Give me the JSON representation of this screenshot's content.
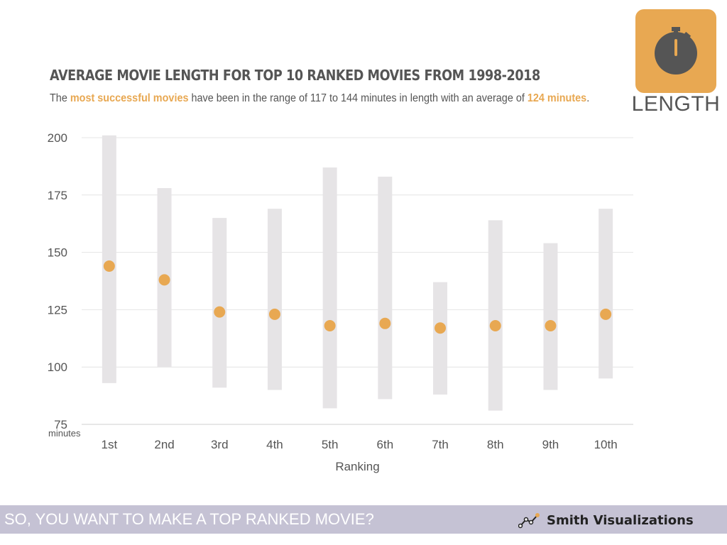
{
  "title": "AVERAGE MOVIE LENGTH FOR TOP 10 RANKED MOVIES FROM 1998-2018",
  "subtitle": {
    "part1": "The ",
    "highlight1": "most successful movies",
    "part2": " have been in the range of 117 to 144 minutes in length with an average of ",
    "highlight2": "124 minutes",
    "part3": "."
  },
  "badge": {
    "label": "LENGTH",
    "icon": "stopwatch-icon"
  },
  "footer": {
    "text": "SO, YOU WANT TO MAKE A TOP RANKED MOVIE?",
    "brand": "Smith Visualizations",
    "brand_icon": "line-chart-icon"
  },
  "colors": {
    "accent": "#e8a852",
    "range_bar": "#e6e4e6",
    "text": "#555555",
    "footer_bg": "#c5c2d4"
  },
  "chart_data": {
    "type": "scatter",
    "title": "AVERAGE MOVIE LENGTH FOR TOP 10 RANKED MOVIES FROM 1998-2018",
    "xlabel": "Ranking",
    "ylabel": "minutes",
    "ylim": [
      75,
      200
    ],
    "yticks": [
      75,
      100,
      125,
      150,
      175,
      200
    ],
    "grid": true,
    "categories": [
      "1st",
      "2nd",
      "3rd",
      "4th",
      "5th",
      "6th",
      "7th",
      "8th",
      "9th",
      "10th"
    ],
    "series": [
      {
        "name": "",
        "kind": "range",
        "low": [
          93,
          100,
          91,
          90,
          82,
          86,
          88,
          81,
          90,
          95
        ],
        "high": [
          201,
          178,
          165,
          169,
          187,
          183,
          137,
          164,
          154,
          169
        ]
      },
      {
        "name": "",
        "kind": "average",
        "values": [
          144,
          138,
          124,
          123,
          118,
          119,
          117,
          118,
          118,
          123
        ]
      }
    ]
  }
}
